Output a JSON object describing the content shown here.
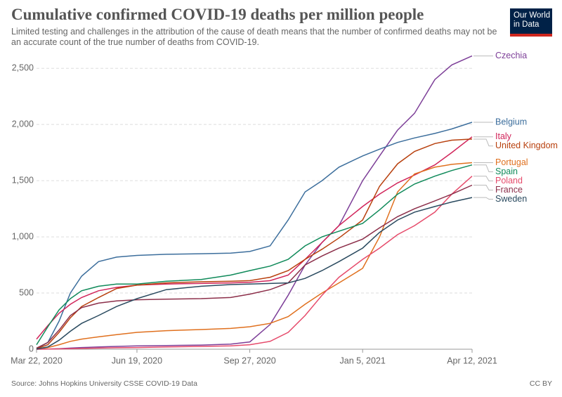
{
  "chart_data": {
    "type": "line",
    "title": "Cumulative confirmed COVID-19 deaths per million people",
    "subtitle": "Limited testing and challenges in the attribution of the cause of death means that the number of confirmed deaths may not be an accurate count of the true number of deaths from COVID-19.",
    "logo": [
      "Our World",
      "in Data"
    ],
    "source": "Source: Johns Hopkins University CSSE COVID-19 Data",
    "license": "CC BY",
    "x": [
      "2020-03-22",
      "2020-04-01",
      "2020-04-11",
      "2020-04-21",
      "2020-05-01",
      "2020-05-16",
      "2020-06-01",
      "2020-06-19",
      "2020-07-15",
      "2020-08-15",
      "2020-09-10",
      "2020-09-27",
      "2020-10-15",
      "2020-10-31",
      "2020-11-15",
      "2020-11-30",
      "2020-12-15",
      "2021-01-05",
      "2021-01-20",
      "2021-02-05",
      "2021-02-20",
      "2021-03-10",
      "2021-03-25",
      "2021-04-12"
    ],
    "xlim": [
      "2020-03-22",
      "2021-04-12"
    ],
    "xticks": [
      {
        "value": "2020-03-22",
        "label": "Mar 22, 2020"
      },
      {
        "value": "2020-06-19",
        "label": "Jun 19, 2020"
      },
      {
        "value": "2020-09-27",
        "label": "Sep 27, 2020"
      },
      {
        "value": "2021-01-05",
        "label": "Jan 5, 2021"
      },
      {
        "value": "2021-04-12",
        "label": "Apr 12, 2021"
      }
    ],
    "ylim": [
      0,
      2620
    ],
    "yticks": [
      0,
      500,
      {
        "value": 1000,
        "label": "1,000"
      },
      {
        "value": 1500,
        "label": "1,500"
      },
      {
        "value": 2000,
        "label": "2,000"
      },
      {
        "value": 2500,
        "label": "2,500"
      }
    ],
    "grid": true,
    "series": [
      {
        "name": "Czechia",
        "color": "#7d3f98",
        "values": [
          0,
          2,
          5,
          10,
          15,
          20,
          25,
          30,
          33,
          37,
          45,
          65,
          220,
          480,
          750,
          950,
          1100,
          1500,
          1720,
          1950,
          2100,
          2400,
          2530,
          2610
        ]
      },
      {
        "name": "Belgium",
        "color": "#3c6e9c",
        "values": [
          5,
          60,
          250,
          500,
          650,
          780,
          820,
          835,
          845,
          850,
          855,
          870,
          920,
          1150,
          1400,
          1500,
          1620,
          1720,
          1780,
          1840,
          1880,
          1920,
          1960,
          2020
        ]
      },
      {
        "name": "Italy",
        "color": "#d1245a",
        "values": [
          90,
          210,
          320,
          400,
          460,
          520,
          550,
          570,
          580,
          585,
          590,
          595,
          610,
          660,
          800,
          950,
          1100,
          1270,
          1380,
          1480,
          1550,
          1640,
          1750,
          1890
        ]
      },
      {
        "name": "United Kingdom",
        "color": "#b8400e",
        "values": [
          5,
          40,
          150,
          280,
          380,
          460,
          540,
          570,
          590,
          600,
          605,
          610,
          640,
          700,
          800,
          890,
          990,
          1150,
          1450,
          1650,
          1760,
          1830,
          1860,
          1870
        ]
      },
      {
        "name": "Portugal",
        "color": "#e0701e",
        "values": [
          1,
          15,
          40,
          70,
          90,
          110,
          130,
          150,
          165,
          175,
          185,
          200,
          230,
          290,
          400,
          500,
          590,
          720,
          1000,
          1400,
          1560,
          1620,
          1645,
          1660
        ]
      },
      {
        "name": "Spain",
        "color": "#108a5a",
        "values": [
          40,
          200,
          350,
          450,
          520,
          560,
          580,
          580,
          605,
          620,
          660,
          700,
          740,
          800,
          920,
          1000,
          1050,
          1120,
          1240,
          1380,
          1470,
          1540,
          1590,
          1640
        ]
      },
      {
        "name": "Poland",
        "color": "#e64b6b",
        "values": [
          0,
          1,
          3,
          5,
          7,
          10,
          13,
          15,
          20,
          25,
          30,
          40,
          70,
          150,
          300,
          480,
          640,
          800,
          900,
          1020,
          1100,
          1220,
          1380,
          1540
        ]
      },
      {
        "name": "France",
        "color": "#8c2f4a",
        "values": [
          10,
          60,
          170,
          300,
          370,
          410,
          430,
          440,
          445,
          450,
          460,
          490,
          530,
          590,
          750,
          830,
          900,
          980,
          1080,
          1180,
          1250,
          1320,
          1380,
          1460
        ]
      },
      {
        "name": "Sweden",
        "color": "#2a4a5f",
        "values": [
          2,
          20,
          80,
          160,
          230,
          300,
          380,
          450,
          530,
          560,
          575,
          580,
          585,
          590,
          630,
          700,
          780,
          900,
          1040,
          1150,
          1220,
          1270,
          1310,
          1350
        ]
      }
    ]
  }
}
